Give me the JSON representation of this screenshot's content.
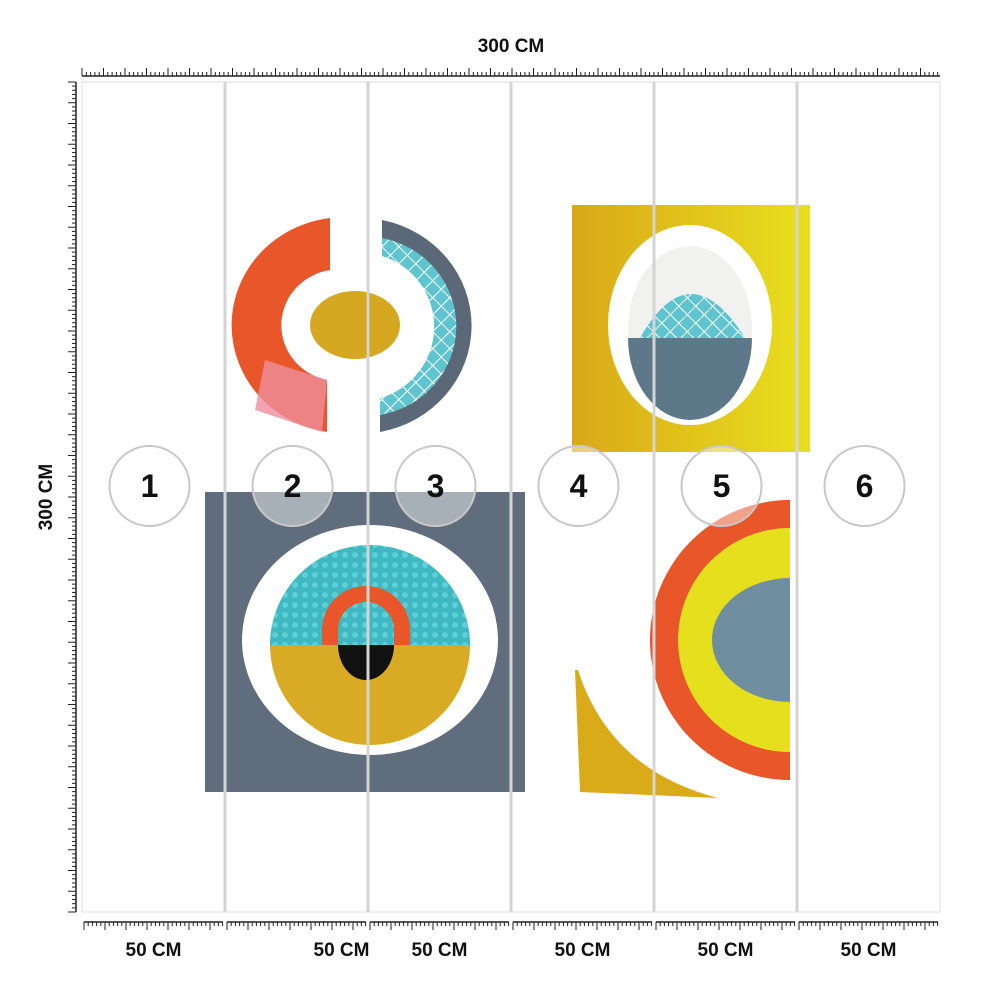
{
  "dimensions": {
    "width": "300 CM",
    "height": "300 CM"
  },
  "panels": [
    {
      "number": "1",
      "width": "50 CM"
    },
    {
      "number": "2",
      "width": "50 CM"
    },
    {
      "number": "3",
      "width": "50 CM"
    },
    {
      "number": "4",
      "width": "50 CM"
    },
    {
      "number": "5",
      "width": "50 CM"
    },
    {
      "number": "6",
      "width": "50 CM"
    }
  ]
}
